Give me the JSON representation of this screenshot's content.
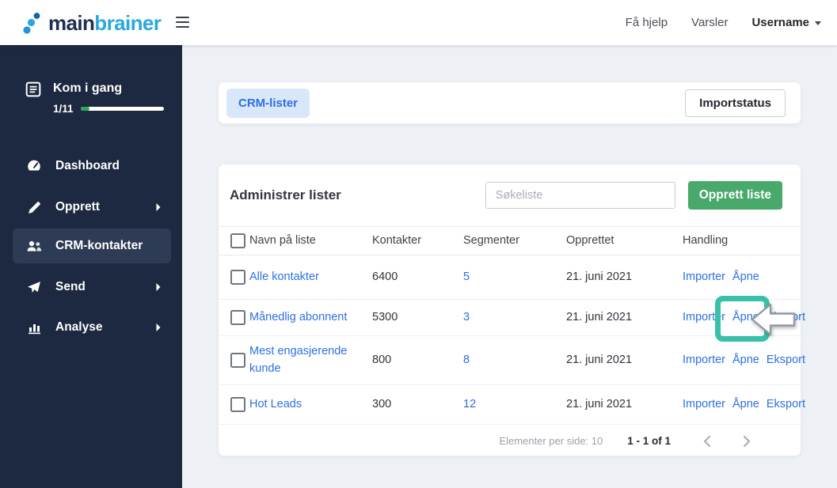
{
  "header": {
    "logo_main": "main",
    "logo_brainer": "brainer",
    "help": "Få hjelp",
    "notifications": "Varsler",
    "username": "Username"
  },
  "sidebar": {
    "getting_started": {
      "label": "Kom i gang",
      "progress_label": "1/11",
      "progress_pct": 11
    },
    "items": [
      {
        "label": "Dashboard",
        "icon": "dashboard-gauge-icon",
        "has_submenu": false,
        "active": false
      },
      {
        "label": "Opprett",
        "icon": "pencil-icon",
        "has_submenu": true,
        "active": false
      },
      {
        "label": "CRM-kontakter",
        "icon": "people-icon",
        "has_submenu": false,
        "active": true
      },
      {
        "label": "Send",
        "icon": "paper-plane-icon",
        "has_submenu": true,
        "active": false
      },
      {
        "label": "Analyse",
        "icon": "bar-chart-icon",
        "has_submenu": true,
        "active": false
      }
    ]
  },
  "topbar": {
    "tab": "CRM-lister",
    "import_status": "Importstatus"
  },
  "list_card": {
    "title": "Administrer lister",
    "search_placeholder": "Søkeliste",
    "create_button": "Opprett liste",
    "table": {
      "headers": [
        "Navn på liste",
        "Kontakter",
        "Segmenter",
        "Opprettet",
        "Handling"
      ],
      "rows": [
        {
          "name": "Alle kontakter",
          "contacts": "6400",
          "segments": "5",
          "created": "21. juni 2021",
          "actions": [
            "Importer",
            "Åpne"
          ]
        },
        {
          "name": "Månedlig abonnent",
          "contacts": "5300",
          "segments": "3",
          "created": "21. juni 2021",
          "actions": [
            "Importer",
            "Åpne",
            "Eksport"
          ],
          "highlighted_action": "Åpne"
        },
        {
          "name": "Mest engasjerende kunde",
          "contacts": "800",
          "segments": "8",
          "created": "21. juni 2021",
          "actions": [
            "Importer",
            "Åpne",
            "Eksport"
          ]
        },
        {
          "name": "Hot Leads",
          "contacts": "300",
          "segments": "12",
          "created": "21. juni 2021",
          "actions": [
            "Importer",
            "Åpne",
            "Eksport"
          ]
        }
      ]
    },
    "pagination": {
      "per_page_label": "Elementer per side: 10",
      "range_label": "1 - 1 of 1"
    }
  },
  "colors": {
    "brand_navy": "#1e2d52",
    "brand_blue": "#29a8e0",
    "sidebar_bg": "#1c2940",
    "sidebar_active_bg": "#2d3b54",
    "progress_green": "#2aa85c",
    "link_blue": "#2d6fe4",
    "chip_bg": "#d9e7fa",
    "chip_text": "#2c6fe2",
    "button_green": "#48a96a",
    "highlight_teal": "#38c1a8",
    "content_bg": "#edf1f5"
  }
}
